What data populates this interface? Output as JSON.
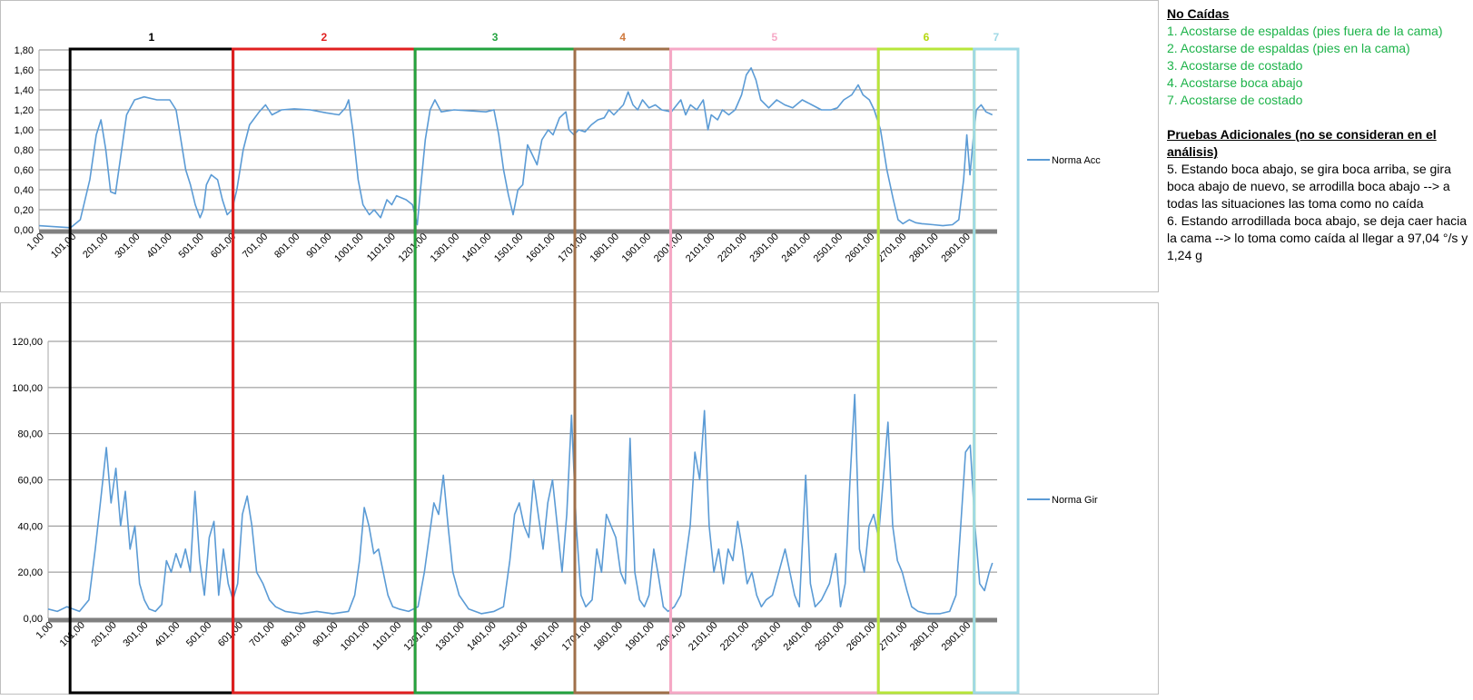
{
  "colors": {
    "series": "#5b9bd5",
    "grid": "#8c8c8c",
    "baseline": "#808080",
    "groups": [
      "#000000",
      "#e02020",
      "#23a33f",
      "#a0704a",
      "#f6a8c6",
      "#b7e63a",
      "#9fd9e6"
    ],
    "group_labels": [
      "#000000",
      "#e02020",
      "#23a33f",
      "#d07a3e",
      "#f6a8c6",
      "#b5d80f",
      "#9fd9e6"
    ],
    "note_green": "#1db34a"
  },
  "group_labels": [
    "1",
    "2",
    "3",
    "4",
    "5",
    "6",
    "7"
  ],
  "group_ranges": [
    [
      101,
      611
    ],
    [
      611,
      1181
    ],
    [
      1181,
      1681
    ],
    [
      1681,
      1981
    ],
    [
      1981,
      2631
    ],
    [
      2631,
      2931
    ],
    [
      2931,
      3251
    ]
  ],
  "chart_data": [
    {
      "type": "line",
      "series": [
        {
          "name": "Norma Acc"
        }
      ],
      "ylim": [
        0,
        1.8
      ],
      "yticks": [
        0,
        0.2,
        0.4,
        0.6,
        0.8,
        1.0,
        1.2,
        1.4,
        1.6,
        1.8
      ],
      "ytick_labels": [
        "0,00",
        "0,20",
        "0,40",
        "0,60",
        "0,80",
        "1,00",
        "1,20",
        "1,40",
        "1,60",
        "1,80"
      ],
      "xlim": [
        1,
        3000
      ],
      "xtick_labels": [
        "1,00",
        "101,00",
        "201,00",
        "301,00",
        "401,00",
        "501,00",
        "601,00",
        "701,00",
        "801,00",
        "901,00",
        "1001,00",
        "1101,00",
        "1201,00",
        "1301,00",
        "1401,00",
        "1501,00",
        "1601,00",
        "1701,00",
        "1801,00",
        "1901,00",
        "2001,00",
        "2101,00",
        "2201,00",
        "2301,00",
        "2401,00",
        "2501,00",
        "2601,00",
        "2701,00",
        "2801,00",
        "2901,00"
      ],
      "points": [
        [
          1,
          0.04
        ],
        [
          50,
          0.03
        ],
        [
          100,
          0.02
        ],
        [
          130,
          0.1
        ],
        [
          160,
          0.5
        ],
        [
          180,
          0.95
        ],
        [
          195,
          1.1
        ],
        [
          210,
          0.8
        ],
        [
          225,
          0.38
        ],
        [
          240,
          0.36
        ],
        [
          255,
          0.7
        ],
        [
          275,
          1.15
        ],
        [
          300,
          1.3
        ],
        [
          330,
          1.33
        ],
        [
          370,
          1.3
        ],
        [
          410,
          1.3
        ],
        [
          430,
          1.2
        ],
        [
          445,
          0.9
        ],
        [
          460,
          0.6
        ],
        [
          475,
          0.45
        ],
        [
          490,
          0.25
        ],
        [
          505,
          0.12
        ],
        [
          515,
          0.2
        ],
        [
          525,
          0.45
        ],
        [
          540,
          0.55
        ],
        [
          560,
          0.5
        ],
        [
          575,
          0.3
        ],
        [
          590,
          0.15
        ],
        [
          605,
          0.2
        ],
        [
          620,
          0.4
        ],
        [
          640,
          0.8
        ],
        [
          660,
          1.05
        ],
        [
          690,
          1.18
        ],
        [
          710,
          1.25
        ],
        [
          730,
          1.15
        ],
        [
          760,
          1.2
        ],
        [
          800,
          1.21
        ],
        [
          850,
          1.2
        ],
        [
          900,
          1.17
        ],
        [
          940,
          1.15
        ],
        [
          960,
          1.22
        ],
        [
          970,
          1.3
        ],
        [
          985,
          0.95
        ],
        [
          1000,
          0.5
        ],
        [
          1015,
          0.25
        ],
        [
          1035,
          0.15
        ],
        [
          1050,
          0.2
        ],
        [
          1070,
          0.12
        ],
        [
          1090,
          0.3
        ],
        [
          1105,
          0.25
        ],
        [
          1120,
          0.34
        ],
        [
          1150,
          0.3
        ],
        [
          1170,
          0.25
        ],
        [
          1185,
          0.05
        ],
        [
          1195,
          0.4
        ],
        [
          1210,
          0.9
        ],
        [
          1225,
          1.2
        ],
        [
          1240,
          1.3
        ],
        [
          1260,
          1.18
        ],
        [
          1300,
          1.2
        ],
        [
          1350,
          1.19
        ],
        [
          1400,
          1.18
        ],
        [
          1425,
          1.2
        ],
        [
          1440,
          0.95
        ],
        [
          1455,
          0.6
        ],
        [
          1470,
          0.35
        ],
        [
          1485,
          0.15
        ],
        [
          1500,
          0.4
        ],
        [
          1515,
          0.45
        ],
        [
          1530,
          0.85
        ],
        [
          1545,
          0.75
        ],
        [
          1560,
          0.65
        ],
        [
          1575,
          0.9
        ],
        [
          1595,
          1.0
        ],
        [
          1610,
          0.95
        ],
        [
          1630,
          1.12
        ],
        [
          1650,
          1.18
        ],
        [
          1660,
          1.0
        ],
        [
          1675,
          0.95
        ],
        [
          1690,
          1.0
        ],
        [
          1710,
          0.98
        ],
        [
          1730,
          1.05
        ],
        [
          1750,
          1.1
        ],
        [
          1770,
          1.12
        ],
        [
          1785,
          1.2
        ],
        [
          1800,
          1.15
        ],
        [
          1815,
          1.2
        ],
        [
          1830,
          1.25
        ],
        [
          1845,
          1.38
        ],
        [
          1860,
          1.25
        ],
        [
          1875,
          1.2
        ],
        [
          1890,
          1.3
        ],
        [
          1910,
          1.22
        ],
        [
          1930,
          1.25
        ],
        [
          1950,
          1.2
        ],
        [
          1980,
          1.18
        ],
        [
          2010,
          1.3
        ],
        [
          2025,
          1.15
        ],
        [
          2040,
          1.25
        ],
        [
          2060,
          1.2
        ],
        [
          2080,
          1.3
        ],
        [
          2095,
          1.0
        ],
        [
          2105,
          1.15
        ],
        [
          2125,
          1.1
        ],
        [
          2140,
          1.2
        ],
        [
          2160,
          1.15
        ],
        [
          2180,
          1.2
        ],
        [
          2200,
          1.35
        ],
        [
          2215,
          1.55
        ],
        [
          2230,
          1.62
        ],
        [
          2245,
          1.5
        ],
        [
          2260,
          1.3
        ],
        [
          2285,
          1.22
        ],
        [
          2310,
          1.3
        ],
        [
          2335,
          1.25
        ],
        [
          2360,
          1.22
        ],
        [
          2390,
          1.3
        ],
        [
          2420,
          1.25
        ],
        [
          2450,
          1.2
        ],
        [
          2480,
          1.2
        ],
        [
          2500,
          1.22
        ],
        [
          2520,
          1.3
        ],
        [
          2545,
          1.35
        ],
        [
          2565,
          1.45
        ],
        [
          2580,
          1.35
        ],
        [
          2600,
          1.3
        ],
        [
          2615,
          1.2
        ],
        [
          2635,
          1.0
        ],
        [
          2655,
          0.6
        ],
        [
          2675,
          0.3
        ],
        [
          2690,
          0.1
        ],
        [
          2705,
          0.06
        ],
        [
          2725,
          0.1
        ],
        [
          2745,
          0.07
        ],
        [
          2765,
          0.06
        ],
        [
          2800,
          0.05
        ],
        [
          2830,
          0.04
        ],
        [
          2860,
          0.05
        ],
        [
          2880,
          0.1
        ],
        [
          2895,
          0.5
        ],
        [
          2905,
          0.95
        ],
        [
          2915,
          0.55
        ],
        [
          2925,
          0.9
        ],
        [
          2935,
          1.2
        ],
        [
          2950,
          1.25
        ],
        [
          2965,
          1.18
        ],
        [
          2985,
          1.15
        ]
      ]
    },
    {
      "type": "line",
      "series": [
        {
          "name": "Norma Gir"
        }
      ],
      "ylim": [
        0,
        120
      ],
      "yticks": [
        0,
        20,
        40,
        60,
        80,
        100,
        120
      ],
      "ytick_labels": [
        "0,00",
        "20,00",
        "40,00",
        "60,00",
        "80,00",
        "100,00",
        "120,00"
      ],
      "xlim": [
        1,
        3000
      ],
      "xtick_labels": [
        "1,00",
        "101,00",
        "201,00",
        "301,00",
        "401,00",
        "501,00",
        "601,00",
        "701,00",
        "801,00",
        "901,00",
        "1001,00",
        "1101,00",
        "1201,00",
        "1301,00",
        "1401,00",
        "1501,00",
        "1601,00",
        "1701,00",
        "1801,00",
        "1901,00",
        "2001,00",
        "2101,00",
        "2201,00",
        "2301,00",
        "2401,00",
        "2501,00",
        "2601,00",
        "2701,00",
        "2801,00",
        "2901,00"
      ],
      "points": [
        [
          1,
          4
        ],
        [
          30,
          3
        ],
        [
          60,
          5
        ],
        [
          100,
          3
        ],
        [
          130,
          8
        ],
        [
          150,
          30
        ],
        [
          170,
          55
        ],
        [
          185,
          74
        ],
        [
          200,
          50
        ],
        [
          215,
          65
        ],
        [
          230,
          40
        ],
        [
          245,
          55
        ],
        [
          260,
          30
        ],
        [
          275,
          40
        ],
        [
          290,
          15
        ],
        [
          305,
          8
        ],
        [
          320,
          4
        ],
        [
          340,
          3
        ],
        [
          360,
          6
        ],
        [
          375,
          25
        ],
        [
          390,
          20
        ],
        [
          405,
          28
        ],
        [
          420,
          22
        ],
        [
          435,
          30
        ],
        [
          450,
          20
        ],
        [
          465,
          55
        ],
        [
          480,
          25
        ],
        [
          495,
          10
        ],
        [
          510,
          35
        ],
        [
          525,
          42
        ],
        [
          540,
          10
        ],
        [
          555,
          30
        ],
        [
          570,
          15
        ],
        [
          585,
          8
        ],
        [
          600,
          15
        ],
        [
          615,
          45
        ],
        [
          630,
          53
        ],
        [
          645,
          40
        ],
        [
          660,
          20
        ],
        [
          680,
          15
        ],
        [
          700,
          8
        ],
        [
          720,
          5
        ],
        [
          750,
          3
        ],
        [
          800,
          2
        ],
        [
          850,
          3
        ],
        [
          900,
          2
        ],
        [
          950,
          3
        ],
        [
          970,
          10
        ],
        [
          985,
          25
        ],
        [
          1000,
          48
        ],
        [
          1015,
          40
        ],
        [
          1030,
          28
        ],
        [
          1045,
          30
        ],
        [
          1060,
          20
        ],
        [
          1075,
          10
        ],
        [
          1090,
          5
        ],
        [
          1110,
          4
        ],
        [
          1140,
          3
        ],
        [
          1170,
          5
        ],
        [
          1190,
          20
        ],
        [
          1205,
          35
        ],
        [
          1220,
          50
        ],
        [
          1235,
          45
        ],
        [
          1250,
          62
        ],
        [
          1265,
          40
        ],
        [
          1280,
          20
        ],
        [
          1300,
          10
        ],
        [
          1330,
          4
        ],
        [
          1370,
          2
        ],
        [
          1410,
          3
        ],
        [
          1440,
          5
        ],
        [
          1460,
          25
        ],
        [
          1475,
          45
        ],
        [
          1490,
          50
        ],
        [
          1505,
          40
        ],
        [
          1520,
          35
        ],
        [
          1535,
          60
        ],
        [
          1550,
          45
        ],
        [
          1565,
          30
        ],
        [
          1580,
          50
        ],
        [
          1595,
          60
        ],
        [
          1610,
          40
        ],
        [
          1625,
          20
        ],
        [
          1640,
          45
        ],
        [
          1655,
          88
        ],
        [
          1670,
          40
        ],
        [
          1685,
          10
        ],
        [
          1700,
          5
        ],
        [
          1720,
          8
        ],
        [
          1735,
          30
        ],
        [
          1750,
          20
        ],
        [
          1765,
          45
        ],
        [
          1780,
          40
        ],
        [
          1795,
          35
        ],
        [
          1810,
          20
        ],
        [
          1825,
          15
        ],
        [
          1840,
          78
        ],
        [
          1855,
          20
        ],
        [
          1870,
          8
        ],
        [
          1885,
          5
        ],
        [
          1900,
          10
        ],
        [
          1915,
          30
        ],
        [
          1930,
          18
        ],
        [
          1945,
          5
        ],
        [
          1960,
          3
        ],
        [
          1980,
          5
        ],
        [
          2000,
          10
        ],
        [
          2015,
          25
        ],
        [
          2030,
          40
        ],
        [
          2045,
          72
        ],
        [
          2060,
          60
        ],
        [
          2075,
          90
        ],
        [
          2090,
          40
        ],
        [
          2105,
          20
        ],
        [
          2120,
          30
        ],
        [
          2135,
          15
        ],
        [
          2150,
          30
        ],
        [
          2165,
          25
        ],
        [
          2180,
          42
        ],
        [
          2195,
          30
        ],
        [
          2210,
          15
        ],
        [
          2225,
          20
        ],
        [
          2240,
          10
        ],
        [
          2255,
          5
        ],
        [
          2270,
          8
        ],
        [
          2290,
          10
        ],
        [
          2310,
          20
        ],
        [
          2330,
          30
        ],
        [
          2345,
          20
        ],
        [
          2360,
          10
        ],
        [
          2375,
          5
        ],
        [
          2395,
          62
        ],
        [
          2410,
          15
        ],
        [
          2425,
          5
        ],
        [
          2445,
          8
        ],
        [
          2470,
          15
        ],
        [
          2490,
          28
        ],
        [
          2505,
          5
        ],
        [
          2520,
          15
        ],
        [
          2535,
          60
        ],
        [
          2550,
          97
        ],
        [
          2565,
          30
        ],
        [
          2580,
          20
        ],
        [
          2595,
          40
        ],
        [
          2610,
          45
        ],
        [
          2625,
          35
        ],
        [
          2640,
          60
        ],
        [
          2655,
          85
        ],
        [
          2670,
          40
        ],
        [
          2685,
          25
        ],
        [
          2700,
          20
        ],
        [
          2715,
          12
        ],
        [
          2730,
          5
        ],
        [
          2750,
          3
        ],
        [
          2780,
          2
        ],
        [
          2820,
          2
        ],
        [
          2850,
          3
        ],
        [
          2870,
          10
        ],
        [
          2885,
          40
        ],
        [
          2900,
          72
        ],
        [
          2915,
          75
        ],
        [
          2930,
          40
        ],
        [
          2945,
          15
        ],
        [
          2960,
          12
        ],
        [
          2975,
          20
        ],
        [
          2985,
          24
        ]
      ]
    }
  ],
  "notes": {
    "title1": "No Caídas",
    "items": [
      "1. Acostarse de espaldas (pies fuera de la cama)",
      "2. Acostarse de espaldas (pies en la cama)",
      "3. Acostarse de costado",
      "4. Acostarse boca abajo",
      "7. Acostarse de costado"
    ],
    "title2": "Pruebas Adicionales (no se consideran en el análisis)",
    "para1": "5. Estando boca abajo, se gira boca arriba, se gira boca abajo de nuevo, se arrodilla boca abajo --> a todas las situaciones las toma como no caída",
    "para2": "6. Estando arrodillada boca abajo, se deja caer hacia la cama --> lo toma como caída al llegar a 97,04 °/s y 1,24 g"
  }
}
